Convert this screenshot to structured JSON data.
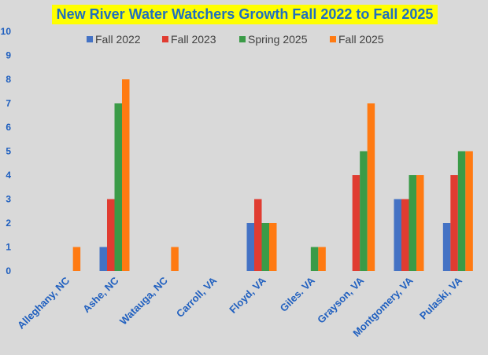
{
  "chart_data": {
    "type": "bar",
    "title": "New River Water Watchers Growth Fall 2022 to Fall 2025",
    "xlabel": "",
    "ylabel": "",
    "ylim": [
      0,
      10
    ],
    "yticks": [
      "0",
      "1",
      "2",
      "3",
      "4",
      "5",
      "6",
      "7",
      "8",
      "9",
      "10"
    ],
    "grid": false,
    "legend_position": "top",
    "categories": [
      "Alleghany, NC",
      "Ashe, NC",
      "Watauga, NC",
      "Carroll, VA",
      "Floyd, VA",
      "Giles. VA",
      "Grayson, VA",
      "Montgomery, VA",
      "Pulaski, VA"
    ],
    "series": [
      {
        "name": "Fall 2022",
        "color": "#4472c4",
        "values": [
          0,
          1,
          0,
          0,
          2,
          0,
          0,
          3,
          2
        ]
      },
      {
        "name": "Fall 2023",
        "color": "#e03c31",
        "values": [
          0,
          3,
          0,
          0,
          3,
          0,
          4,
          3,
          4
        ]
      },
      {
        "name": "Spring 2025",
        "color": "#3a9b47",
        "values": [
          0,
          7,
          0,
          0,
          2,
          1,
          5,
          4,
          5
        ]
      },
      {
        "name": "Fall 2025",
        "color": "#ff7a12",
        "values": [
          1,
          8,
          1,
          0,
          2,
          1,
          7,
          4,
          5
        ]
      }
    ],
    "colors": {
      "title_bg": "#ffff00",
      "title_text": "#1f6fbf",
      "axis_labels": "#1f5fbf",
      "background": "#d9d9d9"
    }
  }
}
